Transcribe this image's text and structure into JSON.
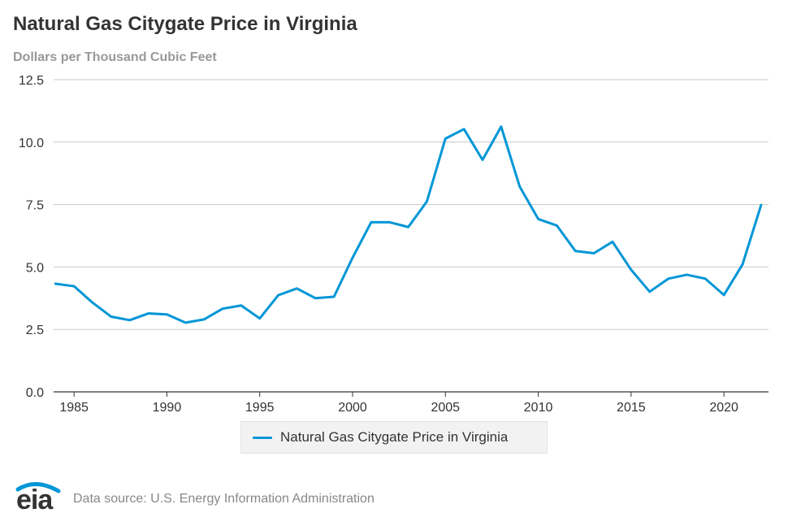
{
  "title": "Natural Gas Citygate Price in Virginia",
  "subtitle": "Dollars per Thousand Cubic Feet",
  "colors": {
    "series": "#0096d7",
    "grid": "#c8c8c8",
    "axis": "#333333",
    "text": "#333333",
    "muted": "#999999",
    "logo_arc": "#0096d7"
  },
  "footer": {
    "logo_text": "eia",
    "source": "Data source: U.S. Energy Information Administration"
  },
  "chart_data": {
    "type": "line",
    "title": "Natural Gas Citygate Price in Virginia",
    "subtitle": "Dollars per Thousand Cubic Feet",
    "xlabel": "",
    "ylabel": "",
    "xlim": [
      1983.9,
      2022.4
    ],
    "ylim": [
      0,
      12.5
    ],
    "yticks": [
      0.0,
      2.5,
      5.0,
      7.5,
      10.0,
      12.5
    ],
    "ytick_labels": [
      "0.0",
      "2.5",
      "5.0",
      "7.5",
      "10.0",
      "12.5"
    ],
    "xticks": [
      1985,
      1990,
      1995,
      2000,
      2005,
      2010,
      2015,
      2020
    ],
    "xtick_labels": [
      "1985",
      "1990",
      "1995",
      "2000",
      "2005",
      "2010",
      "2015",
      "2020"
    ],
    "grid": true,
    "legend_position": "bottom-center",
    "x": [
      1984,
      1985,
      1986,
      1987,
      1988,
      1989,
      1990,
      1991,
      1992,
      1993,
      1994,
      1995,
      1996,
      1997,
      1998,
      1999,
      2000,
      2001,
      2002,
      2003,
      2004,
      2005,
      2006,
      2007,
      2008,
      2009,
      2010,
      2011,
      2012,
      2013,
      2014,
      2015,
      2016,
      2017,
      2018,
      2019,
      2020,
      2021,
      2022
    ],
    "series": [
      {
        "name": "Natural Gas Citygate Price in Virginia",
        "values": [
          4.33,
          4.23,
          3.57,
          3.01,
          2.87,
          3.14,
          3.1,
          2.77,
          2.9,
          3.33,
          3.46,
          2.94,
          3.87,
          4.14,
          3.75,
          3.81,
          5.37,
          6.79,
          6.79,
          6.6,
          7.62,
          10.14,
          10.52,
          9.29,
          10.62,
          8.22,
          6.92,
          6.66,
          5.64,
          5.55,
          6.01,
          4.89,
          4.01,
          4.53,
          4.69,
          4.53,
          3.88,
          5.1,
          7.48
        ]
      }
    ]
  }
}
